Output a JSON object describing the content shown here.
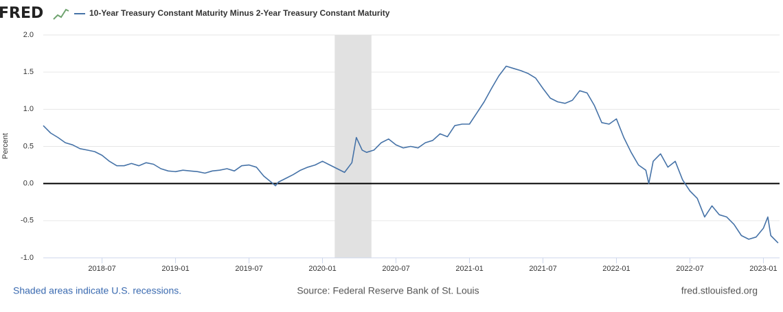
{
  "header": {
    "logo": "FRED"
  },
  "chart_data": {
    "type": "line",
    "ylabel": "Percent",
    "x": [
      2018.1,
      2018.15,
      2018.2,
      2018.25,
      2018.3,
      2018.35,
      2018.4,
      2018.45,
      2018.5,
      2018.55,
      2018.6,
      2018.65,
      2018.7,
      2018.75,
      2018.8,
      2018.85,
      2018.9,
      2018.95,
      2019.0,
      2019.05,
      2019.1,
      2019.15,
      2019.2,
      2019.25,
      2019.3,
      2019.35,
      2019.4,
      2019.45,
      2019.5,
      2019.55,
      2019.6,
      2019.65,
      2019.68,
      2019.7,
      2019.75,
      2019.8,
      2019.85,
      2019.9,
      2019.95,
      2020.0,
      2020.05,
      2020.1,
      2020.15,
      2020.2,
      2020.23,
      2020.27,
      2020.3,
      2020.35,
      2020.4,
      2020.45,
      2020.5,
      2020.55,
      2020.6,
      2020.65,
      2020.7,
      2020.75,
      2020.8,
      2020.85,
      2020.9,
      2020.95,
      2021.0,
      2021.05,
      2021.1,
      2021.15,
      2021.2,
      2021.25,
      2021.3,
      2021.35,
      2021.4,
      2021.45,
      2021.5,
      2021.55,
      2021.6,
      2021.65,
      2021.7,
      2021.75,
      2021.8,
      2021.85,
      2021.9,
      2021.95,
      2022.0,
      2022.05,
      2022.1,
      2022.15,
      2022.2,
      2022.22,
      2022.25,
      2022.3,
      2022.35,
      2022.4,
      2022.45,
      2022.5,
      2022.55,
      2022.6,
      2022.65,
      2022.7,
      2022.75,
      2022.8,
      2022.85,
      2022.9,
      2022.95,
      2023.0,
      2023.03,
      2023.05,
      2023.1
    ],
    "series": [
      {
        "name": "10-Year Treasury Constant Maturity Minus 2-Year Treasury Constant Maturity",
        "color": "#4572a7",
        "values": [
          0.78,
          0.68,
          0.62,
          0.55,
          0.52,
          0.47,
          0.45,
          0.43,
          0.38,
          0.3,
          0.24,
          0.24,
          0.27,
          0.24,
          0.28,
          0.26,
          0.2,
          0.17,
          0.16,
          0.18,
          0.17,
          0.16,
          0.14,
          0.17,
          0.18,
          0.2,
          0.17,
          0.24,
          0.25,
          0.22,
          0.1,
          0.02,
          -0.03,
          0.02,
          0.07,
          0.12,
          0.18,
          0.22,
          0.25,
          0.3,
          0.25,
          0.2,
          0.15,
          0.28,
          0.62,
          0.45,
          0.42,
          0.45,
          0.55,
          0.6,
          0.52,
          0.48,
          0.5,
          0.48,
          0.55,
          0.58,
          0.67,
          0.63,
          0.78,
          0.8,
          0.8,
          0.95,
          1.1,
          1.28,
          1.45,
          1.58,
          1.55,
          1.52,
          1.48,
          1.42,
          1.28,
          1.15,
          1.1,
          1.08,
          1.12,
          1.25,
          1.22,
          1.05,
          0.82,
          0.8,
          0.87,
          0.62,
          0.42,
          0.25,
          0.18,
          0.0,
          0.3,
          0.4,
          0.22,
          0.3,
          0.05,
          -0.1,
          -0.2,
          -0.45,
          -0.3,
          -0.42,
          -0.45,
          -0.55,
          -0.7,
          -0.75,
          -0.72,
          -0.6,
          -0.45,
          -0.7,
          -0.8
        ]
      }
    ],
    "recessions": [
      {
        "start": 2020.083,
        "end": 2020.333
      }
    ],
    "xlim": [
      2018.1,
      2023.11
    ],
    "xticks": [
      {
        "value": 2018.5,
        "label": "2018-07"
      },
      {
        "value": 2019.0,
        "label": "2019-01"
      },
      {
        "value": 2019.5,
        "label": "2019-07"
      },
      {
        "value": 2020.0,
        "label": "2020-01"
      },
      {
        "value": 2020.5,
        "label": "2020-07"
      },
      {
        "value": 2021.0,
        "label": "2021-01"
      },
      {
        "value": 2021.5,
        "label": "2021-07"
      },
      {
        "value": 2022.0,
        "label": "2022-01"
      },
      {
        "value": 2022.5,
        "label": "2022-07"
      },
      {
        "value": 2023.0,
        "label": "2023-01"
      }
    ],
    "ylim": [
      -1,
      2
    ],
    "yticks": [
      {
        "value": 2,
        "label": "2.0"
      },
      1.5,
      {
        "value": 1,
        "label": "1.0"
      },
      0.5,
      {
        "value": 0,
        "label": "0.0"
      },
      -0.5,
      {
        "value": -1,
        "label": "-1.0"
      }
    ],
    "grid": true,
    "zero_line": true
  },
  "footer": {
    "note": "Shaded areas indicate U.S. recessions.",
    "source": "Source: Federal Reserve Bank of St. Louis",
    "site": "fred.stlouisfed.org"
  }
}
